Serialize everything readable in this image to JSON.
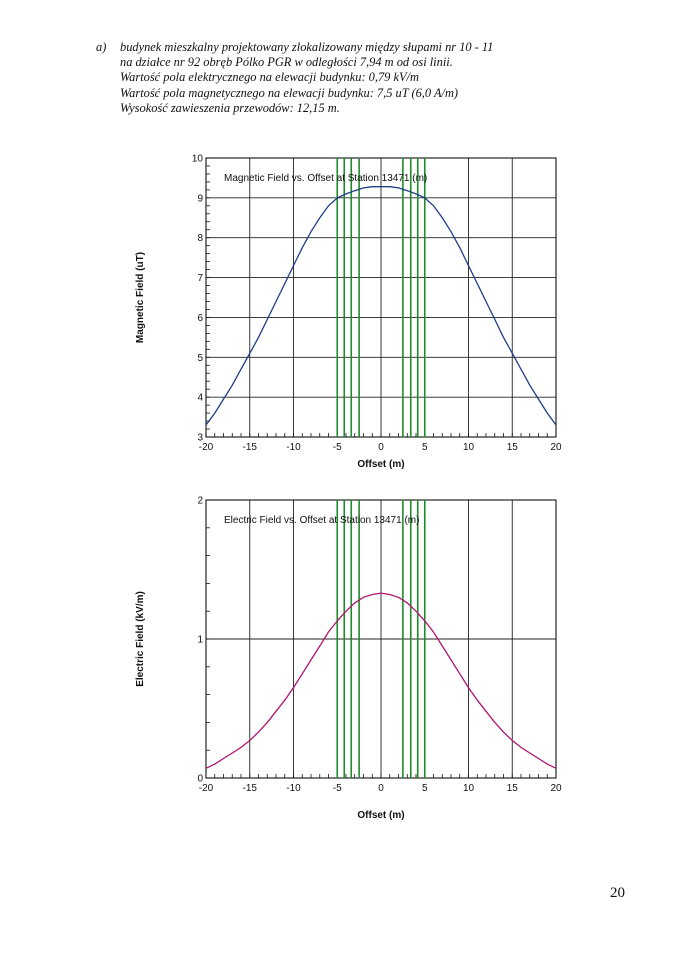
{
  "description_block": {
    "marker": "a)",
    "lines": [
      "budynek mieszkalny projektowany zlokalizowany między słupami nr 10 - 11",
      "na działce nr 92 obręb Pólko PGR w odległości 7,94 m od osi linii.",
      "Wartość pola elektrycznego na elewacji budynku: 0,79 kV/m",
      "Wartość pola magnetycznego na elewacji budynku: 7,5 uT (6,0 A/m)",
      "Wysokość zawieszenia przewodów: 12,15 m."
    ]
  },
  "page_number": "20",
  "chart_data": [
    {
      "type": "line",
      "title": "Magnetic Field vs. Offset at Station 13471 (m)",
      "xlabel": "Offset (m)",
      "ylabel": "Magnetic Field (uT)",
      "xlim": [
        -20,
        20
      ],
      "ylim": [
        3,
        10
      ],
      "x_ticks": [
        "-20",
        "-15",
        "-10",
        "-5",
        "0",
        "5",
        "10",
        "15",
        "20"
      ],
      "y_ticks": [
        "3",
        "4",
        "5",
        "6",
        "7",
        "8",
        "9",
        "10"
      ],
      "grid": true,
      "line_color": "#1f3c88",
      "conductor_line_color": "#1e8c2a",
      "conductor_offsets": [
        -5,
        -4.2,
        -3.4,
        -2.5,
        2.5,
        3.4,
        4.2,
        5
      ],
      "series": [
        {
          "x": [
            -20,
            -19,
            -18,
            -17,
            -16,
            -15,
            -14,
            -13,
            -12,
            -11,
            -10,
            -9,
            -8,
            -7,
            -6,
            -5,
            -4,
            -3,
            -2,
            -1,
            0,
            1,
            2,
            3,
            4,
            5,
            6,
            7,
            8,
            9,
            10,
            11,
            12,
            13,
            14,
            15,
            16,
            17,
            18,
            19,
            20
          ],
          "values": [
            3.3,
            3.6,
            3.95,
            4.3,
            4.7,
            5.1,
            5.5,
            5.95,
            6.4,
            6.85,
            7.3,
            7.75,
            8.15,
            8.5,
            8.8,
            9.0,
            9.1,
            9.18,
            9.25,
            9.28,
            9.28,
            9.28,
            9.25,
            9.18,
            9.1,
            9.0,
            8.8,
            8.5,
            8.15,
            7.75,
            7.3,
            6.85,
            6.4,
            5.95,
            5.5,
            5.1,
            4.7,
            4.3,
            3.95,
            3.6,
            3.3
          ]
        }
      ]
    },
    {
      "type": "line",
      "title": "Electric Field vs. Offset at Station 13471 (m)",
      "xlabel": "Offset (m)",
      "ylabel": "Electric Field (kV/m)",
      "xlim": [
        -20,
        20
      ],
      "ylim": [
        0,
        2
      ],
      "x_ticks": [
        "-20",
        "-15",
        "-10",
        "-5",
        "0",
        "5",
        "10",
        "15",
        "20"
      ],
      "y_ticks": [
        "0",
        "1",
        "2"
      ],
      "grid": true,
      "line_color": "#b0146e",
      "conductor_line_color": "#1e8c2a",
      "conductor_offsets": [
        -5,
        -4.2,
        -3.4,
        -2.5,
        2.5,
        3.4,
        4.2,
        5
      ],
      "series": [
        {
          "x": [
            -20,
            -19,
            -18,
            -17,
            -16,
            -15,
            -14,
            -13,
            -12,
            -11,
            -10,
            -9,
            -8,
            -7,
            -6,
            -5,
            -4,
            -3,
            -2,
            -1,
            0,
            1,
            2,
            3,
            4,
            5,
            6,
            7,
            8,
            9,
            10,
            11,
            12,
            13,
            14,
            15,
            16,
            17,
            18,
            19,
            20
          ],
          "values": [
            0.07,
            0.1,
            0.14,
            0.18,
            0.22,
            0.27,
            0.33,
            0.4,
            0.48,
            0.56,
            0.65,
            0.75,
            0.85,
            0.95,
            1.05,
            1.13,
            1.2,
            1.26,
            1.3,
            1.32,
            1.33,
            1.32,
            1.3,
            1.26,
            1.2,
            1.13,
            1.05,
            0.95,
            0.85,
            0.75,
            0.65,
            0.56,
            0.48,
            0.4,
            0.33,
            0.27,
            0.22,
            0.18,
            0.14,
            0.1,
            0.07
          ]
        }
      ]
    }
  ]
}
